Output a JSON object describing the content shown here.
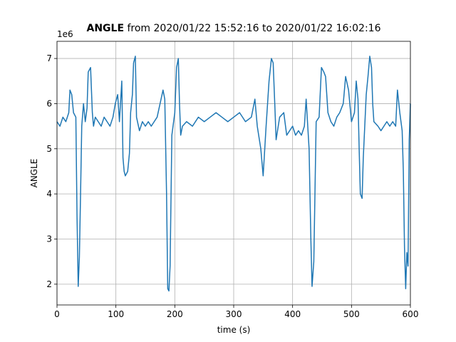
{
  "chart_data": {
    "type": "line",
    "title_bold": "ANGLE",
    "title": "from 2020/01/22 15:52:16 to 2020/01/22 16:02:16",
    "x_label": "time (s)",
    "y_label": "ANGLE",
    "y_offset_label": "1e6",
    "x": [
      0,
      5,
      10,
      15,
      20,
      22,
      25,
      28,
      32,
      34,
      36,
      38,
      40,
      42,
      45,
      48,
      51,
      53,
      57,
      60,
      62,
      65,
      70,
      75,
      80,
      85,
      90,
      95,
      99,
      103,
      106,
      110,
      112,
      114,
      116,
      120,
      123,
      125,
      128,
      130,
      133,
      135,
      140,
      145,
      150,
      155,
      160,
      165,
      170,
      175,
      180,
      183,
      186,
      188,
      190,
      192,
      195,
      200,
      203,
      206,
      208,
      210,
      213,
      220,
      230,
      240,
      250,
      260,
      270,
      280,
      290,
      300,
      310,
      320,
      330,
      336,
      340,
      346,
      350,
      355,
      360,
      364,
      367,
      370,
      372,
      378,
      385,
      390,
      395,
      400,
      405,
      410,
      415,
      420,
      423,
      428,
      431,
      433,
      436,
      440,
      445,
      449,
      453,
      456,
      460,
      465,
      470,
      475,
      480,
      486,
      490,
      495,
      500,
      505,
      508,
      511,
      513,
      515,
      518,
      520,
      525,
      528,
      531,
      534,
      536,
      538,
      545,
      550,
      555,
      560,
      565,
      570,
      575,
      578,
      582,
      586,
      588,
      590,
      592,
      594,
      596,
      598,
      600
    ],
    "series": [
      {
        "color": "#1f77b4",
        "values": [
          5.6,
          5.5,
          5.7,
          5.6,
          5.8,
          6.3,
          6.2,
          5.8,
          5.7,
          3.5,
          1.95,
          2.6,
          4.0,
          5.5,
          6.0,
          5.6,
          5.9,
          6.7,
          6.8,
          5.8,
          5.5,
          5.7,
          5.6,
          5.5,
          5.7,
          5.6,
          5.5,
          5.7,
          6.0,
          6.2,
          5.6,
          6.5,
          4.8,
          4.5,
          4.4,
          4.5,
          4.9,
          5.8,
          6.2,
          6.9,
          7.05,
          5.7,
          5.4,
          5.6,
          5.5,
          5.6,
          5.5,
          5.6,
          5.7,
          6.0,
          6.3,
          6.1,
          4.0,
          1.9,
          1.85,
          2.4,
          5.3,
          5.8,
          6.8,
          7.0,
          6.0,
          5.3,
          5.5,
          5.6,
          5.5,
          5.7,
          5.6,
          5.7,
          5.8,
          5.7,
          5.6,
          5.7,
          5.8,
          5.6,
          5.7,
          6.1,
          5.5,
          5.0,
          4.4,
          5.5,
          6.5,
          7.0,
          6.9,
          5.9,
          5.2,
          5.7,
          5.8,
          5.3,
          5.4,
          5.5,
          5.3,
          5.4,
          5.3,
          5.5,
          6.1,
          5.0,
          3.0,
          1.95,
          2.5,
          5.6,
          5.7,
          6.8,
          6.7,
          6.6,
          5.8,
          5.6,
          5.5,
          5.7,
          5.8,
          6.0,
          6.6,
          6.3,
          5.6,
          5.8,
          6.5,
          6.1,
          5.0,
          4.0,
          3.9,
          4.8,
          6.2,
          6.6,
          7.05,
          6.8,
          6.0,
          5.6,
          5.5,
          5.4,
          5.5,
          5.6,
          5.5,
          5.6,
          5.5,
          6.3,
          5.8,
          5.4,
          4.5,
          2.8,
          1.9,
          2.7,
          2.4,
          5.2,
          6.0
        ]
      }
    ],
    "xlim": [
      0,
      600
    ],
    "xticks": [
      0,
      100,
      200,
      300,
      400,
      500,
      600
    ],
    "ylim": [
      1.54,
      7.38
    ],
    "yticks": [
      2,
      3,
      4,
      5,
      6,
      7
    ],
    "grid": true
  }
}
